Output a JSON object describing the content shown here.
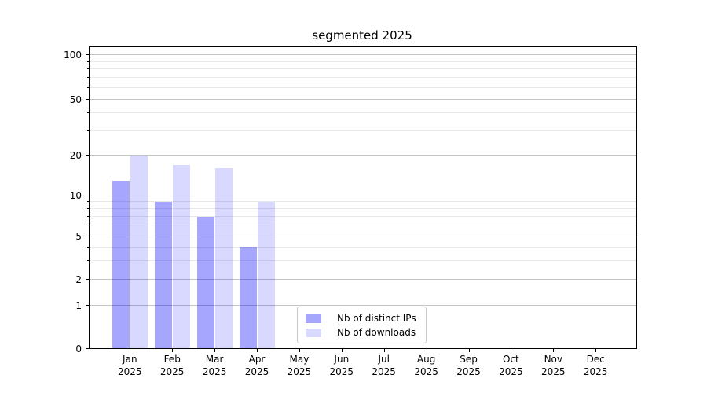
{
  "chart_data": {
    "type": "bar",
    "title": "segmented 2025",
    "categories": [
      "Jan",
      "Feb",
      "Mar",
      "Apr",
      "May",
      "Jun",
      "Jul",
      "Aug",
      "Sep",
      "Oct",
      "Nov",
      "Dec"
    ],
    "category_year": "2025",
    "series": [
      {
        "name": "Nb of distinct IPs",
        "color": "rgba(0,0,255,0.35)",
        "values": [
          13,
          9,
          7,
          4,
          null,
          null,
          null,
          null,
          null,
          null,
          null,
          null
        ]
      },
      {
        "name": "Nb of downloads",
        "color": "rgba(0,0,255,0.15)",
        "values": [
          20,
          17,
          16,
          9,
          null,
          null,
          null,
          null,
          null,
          null,
          null,
          null
        ]
      }
    ],
    "y_axis": {
      "scale": "segmented-log",
      "tick_values": [
        0,
        1,
        2,
        5,
        10,
        20,
        50,
        100
      ],
      "tick_labels": [
        "0",
        "1",
        "2",
        "5",
        "10",
        "20",
        "50",
        "100"
      ],
      "minor_tick_values": [
        3,
        4,
        6,
        7,
        8,
        9,
        30,
        40,
        60,
        70,
        80,
        90
      ],
      "ylim": [
        0,
        113
      ]
    },
    "legend": {
      "location": "lower center"
    },
    "grid": {
      "horizontal": true
    },
    "colors": {
      "major_grid": "#c4c4c4",
      "minor_grid": "#e8e8e8",
      "spine": "#000000",
      "background": "#ffffff"
    }
  }
}
